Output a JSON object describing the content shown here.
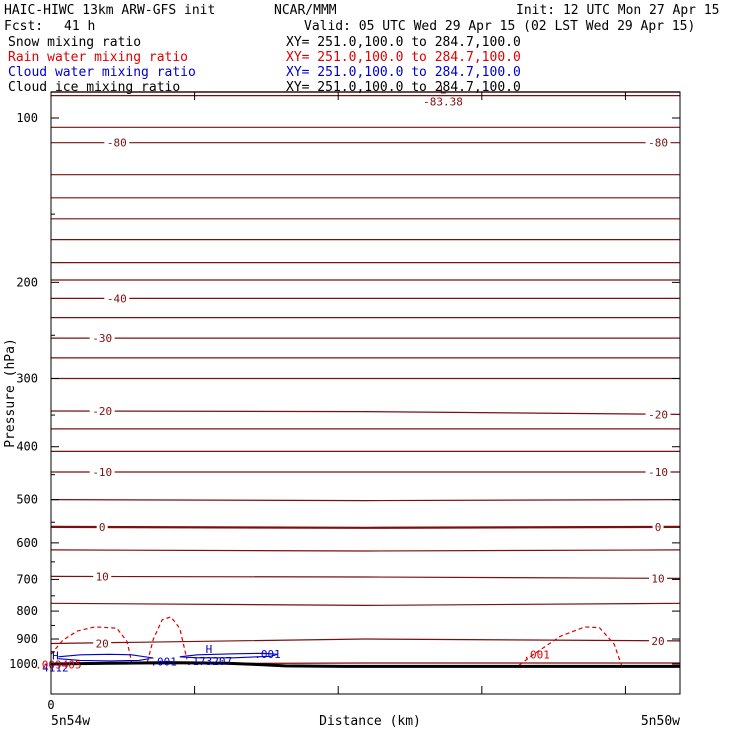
{
  "header": {
    "title": "HAIC-HIWC 13km ARW-GFS init",
    "org": "NCAR/MMM",
    "init": "Init: 12 UTC Mon 27 Apr 15",
    "fcst_label": "Fcst:",
    "fcst_value": "41 h",
    "valid": "Valid: 05 UTC Wed 29 Apr 15 (02 LST Wed 29 Apr 15)"
  },
  "fields": [
    {
      "label": "Snow mixing ratio",
      "xy": "XY= 251.0,100.0 to 284.7,100.0",
      "color": "#000000"
    },
    {
      "label": "Rain water mixing ratio",
      "xy": "XY= 251.0,100.0 to 284.7,100.0",
      "color": "#e00000"
    },
    {
      "label": "Cloud water mixing ratio",
      "xy": "XY= 251.0,100.0 to 284.7,100.0",
      "color": "#0000d0"
    },
    {
      "label": "Cloud ice mixing ratio",
      "xy": "XY= 251.0,100.0 to 284.7,100.0",
      "color": "#000000"
    }
  ],
  "colors": {
    "temperature": "#7a1010",
    "rain": "#e00000",
    "cloud_water": "#0000c8",
    "terrain": "#000000"
  },
  "chart_data": {
    "type": "line",
    "ylabel": "Pressure (hPa)",
    "xlabel": "Distance (km)",
    "ylim": [
      1050,
      70
    ],
    "y_scale": "log",
    "xlim": [
      0,
      430
    ],
    "y_ticks": [
      "100",
      "200",
      "300",
      "400",
      "500",
      "600",
      "700",
      "800",
      "900",
      "1000"
    ],
    "x_ticks": [
      {
        "value": 0,
        "label": "0"
      }
    ],
    "x_end_labels": {
      "left": "5n54w",
      "right": "5n50w"
    },
    "isotherm_labels": [
      {
        "text": "-80",
        "x": 45,
        "p": 111
      },
      {
        "text": "-80",
        "x": 415,
        "p": 111
      },
      {
        "text": "-40",
        "x": 45,
        "p": 214
      },
      {
        "text": "-30",
        "x": 35,
        "p": 253
      },
      {
        "text": "-20",
        "x": 35,
        "p": 344
      },
      {
        "text": "-20",
        "x": 415,
        "p": 349
      },
      {
        "text": "-10",
        "x": 35,
        "p": 445
      },
      {
        "text": "-10",
        "x": 415,
        "p": 445
      },
      {
        "text": "0",
        "x": 35,
        "p": 561
      },
      {
        "text": "0",
        "x": 415,
        "p": 561
      },
      {
        "text": "10",
        "x": 35,
        "p": 691
      },
      {
        "text": "10",
        "x": 415,
        "p": 697
      },
      {
        "text": "20",
        "x": 35,
        "p": 917
      },
      {
        "text": "20",
        "x": 415,
        "p": 907
      }
    ],
    "extrema": [
      {
        "marker": "L",
        "value": "-83.38",
        "x": 268,
        "p": 91,
        "color": "#7a1010"
      },
      {
        "marker": "H",
        "value": ".173207",
        "x": 108,
        "p": 963,
        "color": "#0000c8"
      },
      {
        "marker": "H",
        "value": "4112",
        "x": 3,
        "p": 990,
        "color": "#0000c8"
      }
    ],
    "contour_labels": [
      {
        "text": ".001",
        "x": 77,
        "p": 989,
        "color": "#0000c8"
      },
      {
        "text": ".001",
        "x": 148,
        "p": 959,
        "color": "#0000c8"
      },
      {
        "text": ".001",
        "x": 332,
        "p": 960,
        "color": "#e00000"
      },
      {
        "text": ".009405",
        "x": 5,
        "p": 1002,
        "color": "#e00000"
      }
    ],
    "isotherms": [
      {
        "p": [
          75,
          75,
          75
        ]
      },
      {
        "p": [
          83,
          83,
          83
        ]
      },
      {
        "p": [
          91,
          91,
          91
        ]
      },
      {
        "p": [
          104,
          104,
          104
        ]
      },
      {
        "p": [
          111,
          111,
          111
        ]
      },
      {
        "p": [
          127,
          127,
          127
        ]
      },
      {
        "p": [
          140,
          140,
          140
        ]
      },
      {
        "p": [
          153,
          153,
          153
        ]
      },
      {
        "p": [
          167,
          167,
          167
        ]
      },
      {
        "p": [
          184,
          184,
          184
        ]
      },
      {
        "p": [
          198,
          198,
          198
        ]
      },
      {
        "p": [
          214,
          214,
          214
        ]
      },
      {
        "p": [
          232,
          232,
          232
        ]
      },
      {
        "p": [
          253,
          253,
          253
        ]
      },
      {
        "p": [
          275,
          275,
          275
        ]
      },
      {
        "p": [
          300,
          300,
          300
        ]
      },
      {
        "p": [
          344,
          345,
          349
        ]
      },
      {
        "p": [
          371,
          371,
          371
        ]
      },
      {
        "p": [
          408,
          408,
          408
        ]
      },
      {
        "p": [
          445,
          445,
          445
        ]
      },
      {
        "p": [
          500,
          502,
          500
        ]
      },
      {
        "p": [
          561,
          563,
          561
        ]
      },
      {
        "p": [
          618,
          621,
          618
        ]
      },
      {
        "p": [
          691,
          693,
          697
        ]
      },
      {
        "p": [
          774,
          781,
          774
        ]
      },
      {
        "p": [
          917,
          900,
          907
        ]
      },
      {
        "p": [
          1000,
          996,
          996
        ]
      }
    ],
    "rain_contours": [
      {
        "x": [
          0,
          8,
          18,
          30,
          45,
          52,
          55
        ],
        "p": [
          960,
          905,
          870,
          855,
          860,
          910,
          990
        ]
      },
      {
        "x": [
          66,
          70,
          76,
          82,
          88,
          93
        ],
        "p": [
          990,
          900,
          830,
          820,
          860,
          980
        ]
      },
      {
        "x": [
          320,
          330,
          348,
          365,
          375,
          385,
          390
        ],
        "p": [
          1005,
          960,
          890,
          855,
          858,
          920,
          1005
        ]
      }
    ],
    "cloud_contours": [
      {
        "x": [
          5,
          20,
          40,
          55,
          70,
          60,
          40,
          20,
          5
        ],
        "p": [
          970,
          962,
          960,
          962,
          975,
          985,
          987,
          985,
          978
        ]
      },
      {
        "x": [
          88,
          100,
          125,
          145,
          155,
          150,
          125,
          100,
          88
        ],
        "p": [
          970,
          962,
          958,
          956,
          960,
          968,
          974,
          974,
          970
        ]
      }
    ],
    "terrain": {
      "x": [
        0,
        40,
        80,
        120,
        145,
        160,
        200,
        260,
        330,
        430
      ],
      "p": [
        1000,
        997,
        994,
        997,
        1003,
        1008,
        1010,
        1010,
        1010,
        1010
      ]
    }
  }
}
